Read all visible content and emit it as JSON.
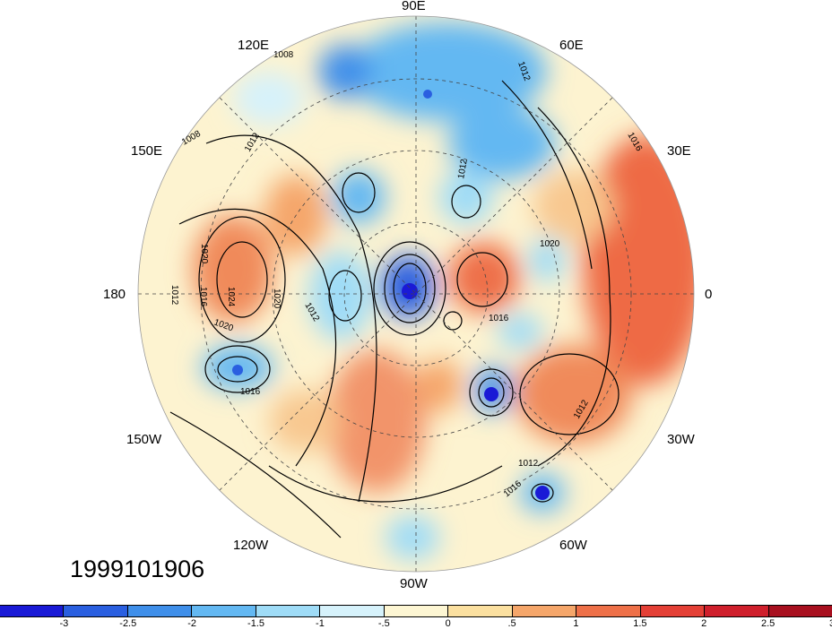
{
  "date_label": "1999101906",
  "longitude_labels": {
    "lon_90E": "90E",
    "lon_120E": "120E",
    "lon_60E": "60E",
    "lon_150E": "150E",
    "lon_30E": "30E",
    "lon_180": "180",
    "lon_0": "0",
    "lon_150W": "150W",
    "lon_30W": "30W",
    "lon_120W": "120W",
    "lon_60W": "60W",
    "lon_90W": "90W"
  },
  "contour_labels": [
    "1008",
    "1012",
    "1008",
    "1012",
    "1016",
    "1020",
    "1024",
    "1016",
    "1012",
    "1020",
    "1012",
    "1020",
    "1016",
    "1012",
    "1020",
    "1016",
    "1012",
    "1012",
    "1016"
  ],
  "colorbar": {
    "colors": [
      "#1a1ad6",
      "#2a5fe0",
      "#3f8fea",
      "#63b8f2",
      "#9fdcf7",
      "#d6f2fb",
      "#fdf6d3",
      "#fbe0a0",
      "#f5a66a",
      "#ee7048",
      "#e44036",
      "#cf1f2c",
      "#a8101f"
    ],
    "tick_labels": [
      "-3",
      "-2.5",
      "-2",
      "-1.5",
      "-1",
      "-.5",
      "0",
      ".5",
      "1",
      "1.5",
      "2",
      "2.5",
      "3"
    ]
  }
}
